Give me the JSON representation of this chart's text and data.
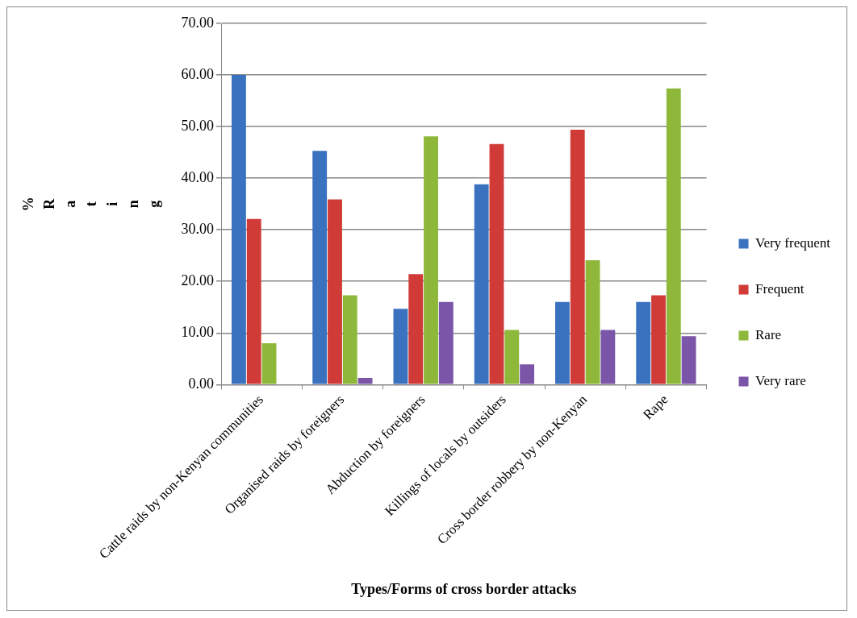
{
  "chart_data": {
    "type": "bar",
    "xlabel": "Types/Forms of cross border attacks",
    "ylabel": "% Rating",
    "categories": [
      "Cattle raids by non-Kenyan communities",
      "Organised raids by foreigners",
      "Abduction by foreigners",
      "Killings of locals by outsiders",
      "Cross border robbery by non-Kenyan",
      "Rape"
    ],
    "series": [
      {
        "name": "Very frequent",
        "color": "#3a72c0",
        "values": [
          60.0,
          45.3,
          14.7,
          38.8,
          16.0,
          16.0
        ]
      },
      {
        "name": "Frequent",
        "color": "#d03b37",
        "values": [
          32.1,
          35.9,
          21.4,
          46.6,
          49.4,
          17.3
        ]
      },
      {
        "name": "Rare",
        "color": "#8db83a",
        "values": [
          8.0,
          17.3,
          48.1,
          10.6,
          24.1,
          57.4
        ]
      },
      {
        "name": "Very rare",
        "color": "#7a55a8",
        "values": [
          0,
          1.3,
          16.0,
          3.9,
          10.6,
          9.4
        ]
      }
    ],
    "ylim": [
      0,
      70
    ],
    "yticks": [
      {
        "value": 0,
        "label": "0.00"
      },
      {
        "value": 10,
        "label": "10.00"
      },
      {
        "value": 20,
        "label": "20.00"
      },
      {
        "value": 30,
        "label": "30.00"
      },
      {
        "value": 40,
        "label": "40.00"
      },
      {
        "value": 50,
        "label": "50.00"
      },
      {
        "value": 60,
        "label": "60.00"
      },
      {
        "value": 70,
        "label": "70.00"
      }
    ],
    "grid": "y",
    "legend": "right"
  }
}
